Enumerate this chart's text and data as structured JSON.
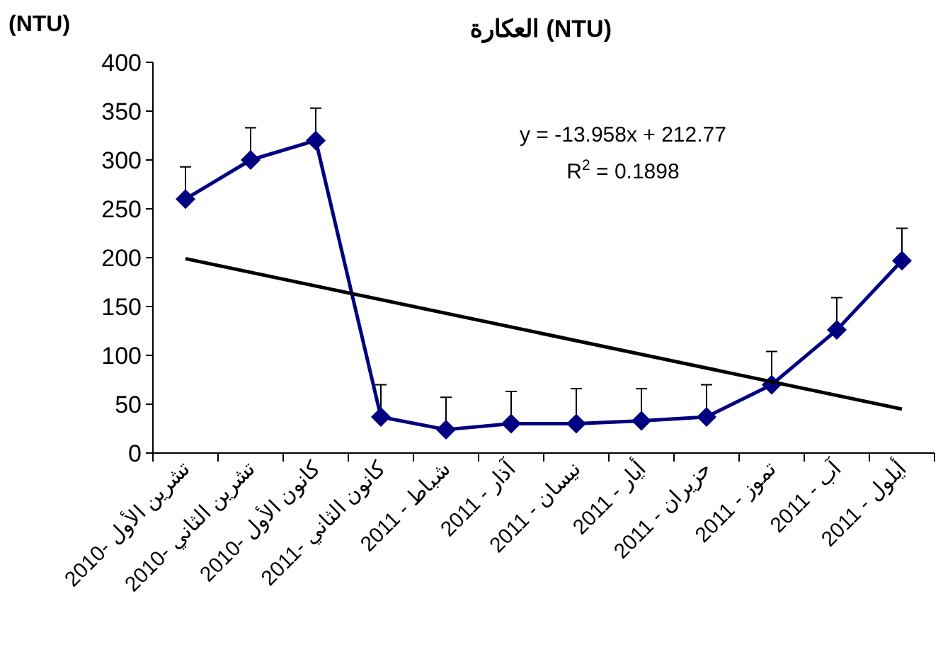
{
  "chart_data": {
    "type": "line",
    "title": "العكارة (NTU)",
    "ylabel": "(NTU)",
    "categories": [
      "تشرين الأول -2010",
      "تشرين الثاني -2010",
      "كانون الأول -2010",
      "كانون الثاني -2011",
      "شباط - 2011",
      "آذار - 2011",
      "نيسان - 2011",
      "أيار - 2011",
      "حزيران - 2011",
      "تموز - 2011",
      "آب - 2011",
      "أيلول - 2011"
    ],
    "series": [
      {
        "color": "#000080",
        "marker": "diamond",
        "values": [
          260,
          300,
          320,
          37,
          24,
          30,
          30,
          33,
          37,
          70,
          126,
          197
        ],
        "errors": [
          [
            260,
            293
          ],
          [
            300,
            333
          ],
          [
            320,
            353
          ],
          [
            37,
            70
          ],
          [
            24,
            57
          ],
          [
            30,
            63
          ],
          [
            30,
            66
          ],
          [
            33,
            66
          ],
          [
            37,
            70
          ],
          [
            70,
            104
          ],
          [
            126,
            159
          ],
          [
            197,
            230
          ]
        ]
      },
      {
        "color": "#000000",
        "marker": "none",
        "x": [
          "تشرين الأول -2010",
          "أيلول - 2011"
        ],
        "values": [
          199,
          45
        ]
      }
    ],
    "ylim": [
      0,
      400
    ],
    "yticks": [
      0,
      50,
      100,
      150,
      200,
      250,
      300,
      350,
      400
    ],
    "grid": false,
    "annotations": [
      "y = -13.958x + 212.77",
      "R$^{2}$ = 0.1898"
    ]
  }
}
